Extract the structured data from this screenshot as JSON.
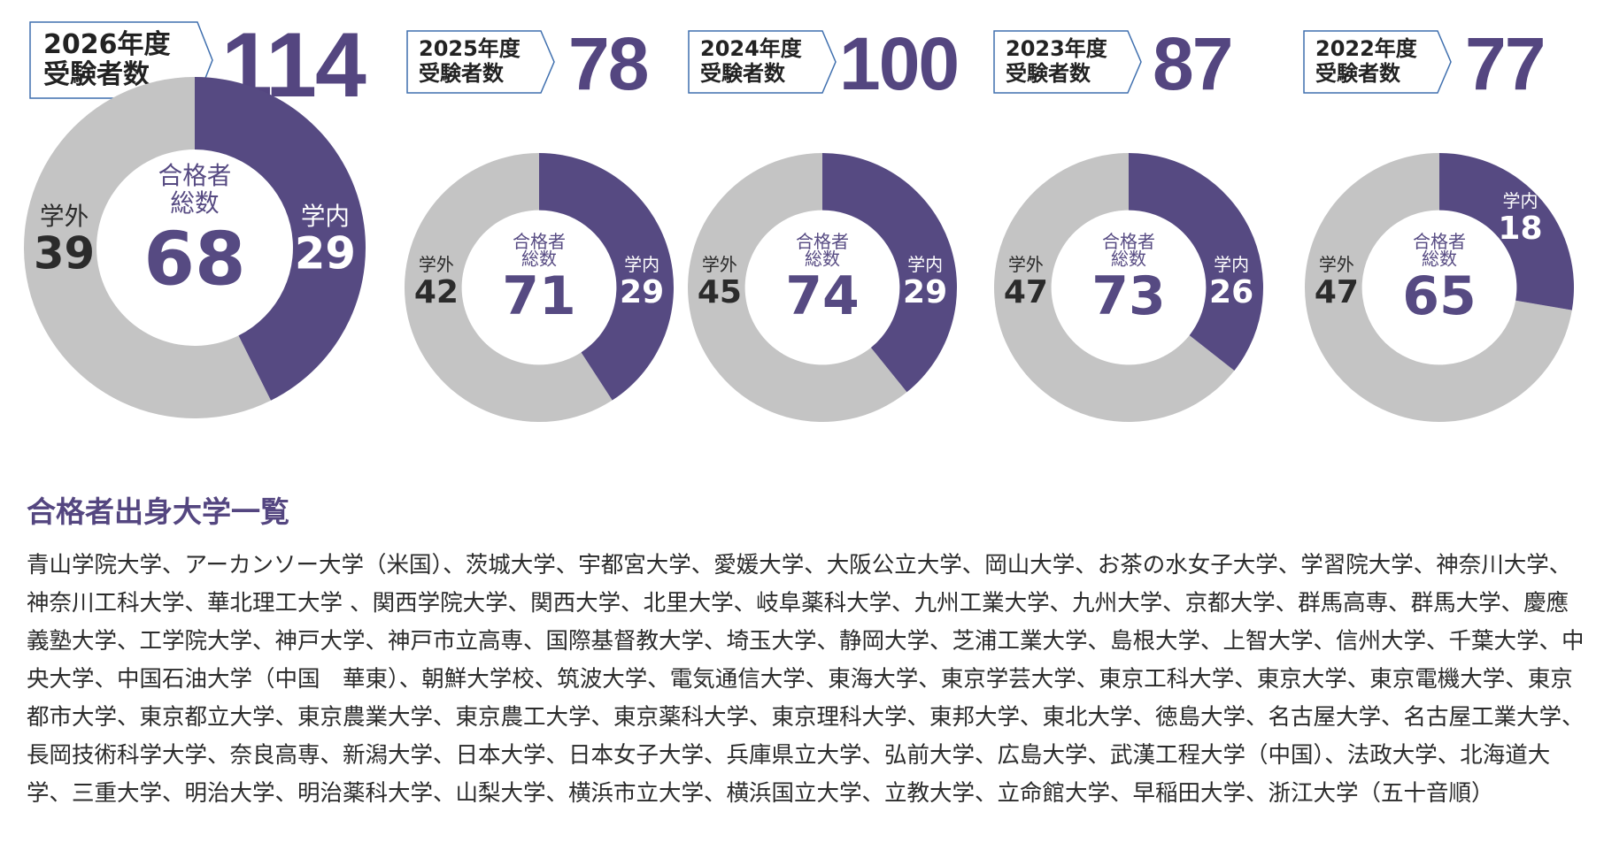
{
  "colors": {
    "inside": "#564a82",
    "outside": "#c4c4c4",
    "badge_border": "#3f6fae",
    "text_dark": "#2b2b2b"
  },
  "chart_data": [
    {
      "type": "pie",
      "year_label": "2026年度",
      "examinees_label": "受験者数",
      "examinees": "114",
      "center_label_1": "合格者",
      "center_label_2": "総数",
      "total": 68,
      "inside_label": "学内",
      "inside": 29,
      "outside_label": "学外",
      "outside": 39
    },
    {
      "type": "pie",
      "year_label": "2025年度",
      "examinees_label": "受験者数",
      "examinees": "78",
      "center_label_1": "合格者",
      "center_label_2": "総数",
      "total": 71,
      "inside_label": "学内",
      "inside": 29,
      "outside_label": "学外",
      "outside": 42
    },
    {
      "type": "pie",
      "year_label": "2024年度",
      "examinees_label": "受験者数",
      "examinees": "100",
      "center_label_1": "合格者",
      "center_label_2": "総数",
      "total": 74,
      "inside_label": "学内",
      "inside": 29,
      "outside_label": "学外",
      "outside": 45
    },
    {
      "type": "pie",
      "year_label": "2023年度",
      "examinees_label": "受験者数",
      "examinees": "87",
      "center_label_1": "合格者",
      "center_label_2": "総数",
      "total": 73,
      "inside_label": "学内",
      "inside": 26,
      "outside_label": "学外",
      "outside": 47
    },
    {
      "type": "pie",
      "year_label": "2022年度",
      "examinees_label": "受験者数",
      "examinees": "77",
      "center_label_1": "合格者",
      "center_label_2": "総数",
      "total": 65,
      "inside_label": "学内",
      "inside": 18,
      "outside_label": "学外",
      "outside": 47
    }
  ],
  "university_list": {
    "title": "合格者出身大学一覧",
    "body": "青山学院大学、アーカンソー大学（米国）、茨城大学、宇都宮大学、愛媛大学、大阪公立大学、岡山大学、お茶の水女子大学、学習院大学、神奈川大学、神奈川工科大学、華北理工大学 、関西学院大学、関西大学、北里大学、岐阜薬科大学、九州工業大学、九州大学、京都大学、群馬高専、群馬大学、慶應義塾大学、工学院大学、神戸大学、神戸市立高専、国際基督教大学、埼玉大学、静岡大学、芝浦工業大学、島根大学、上智大学、信州大学、千葉大学、中央大学、中国石油大学（中国　華東）、朝鮮大学校、筑波大学、電気通信大学、東海大学、東京学芸大学、東京工科大学、東京大学、東京電機大学、東京都市大学、東京都立大学、東京農業大学、東京農工大学、東京薬科大学、東京理科大学、東邦大学、東北大学、徳島大学、名古屋大学、名古屋工業大学、長岡技術科学大学、奈良高専、新潟大学、日本大学、日本女子大学、兵庫県立大学、弘前大学、広島大学、武漢工程大学（中国）、法政大学、北海道大学、三重大学、明治大学、明治薬科大学、山梨大学、横浜市立大学、横浜国立大学、立教大学、立命館大学、早稲田大学、浙江大学（五十音順）"
  }
}
